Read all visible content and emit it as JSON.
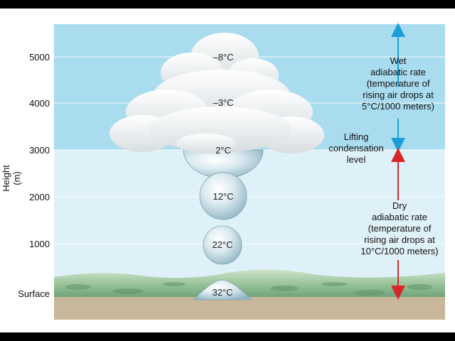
{
  "y_axis": {
    "title": "Height (m)",
    "ticks": [
      "5000",
      "4000",
      "3000",
      "2000",
      "1000",
      "Surface"
    ]
  },
  "bubbles": {
    "top": "–8°C",
    "upper": "–3°C",
    "cloud_base": "2°C",
    "mid": "12°C",
    "low": "22°C",
    "surface": "32°C"
  },
  "wet_rate": {
    "line1": "Wet",
    "line2": "adiabatic rate",
    "line3": "(temperature of",
    "line4": "rising air drops at",
    "line5": "5°C/1000 meters)"
  },
  "lcl": {
    "line1": "Lifting",
    "line2": "condensation",
    "line3": "level"
  },
  "dry_rate": {
    "line1": "Dry",
    "line2": "adiabatic rate",
    "line3": "(temperature of",
    "line4": "rising air drops at",
    "line5": "10°C/1000 meters)"
  },
  "colors": {
    "sky_upper": "#a9dcef",
    "sky_lower": "#dff1f8",
    "ground": "#c9b79a",
    "vegetation": "#a9c9a0",
    "wet_arrow": "#1aa0d8",
    "dry_arrow": "#d8252a",
    "bubble": "#b9d6e2"
  }
}
